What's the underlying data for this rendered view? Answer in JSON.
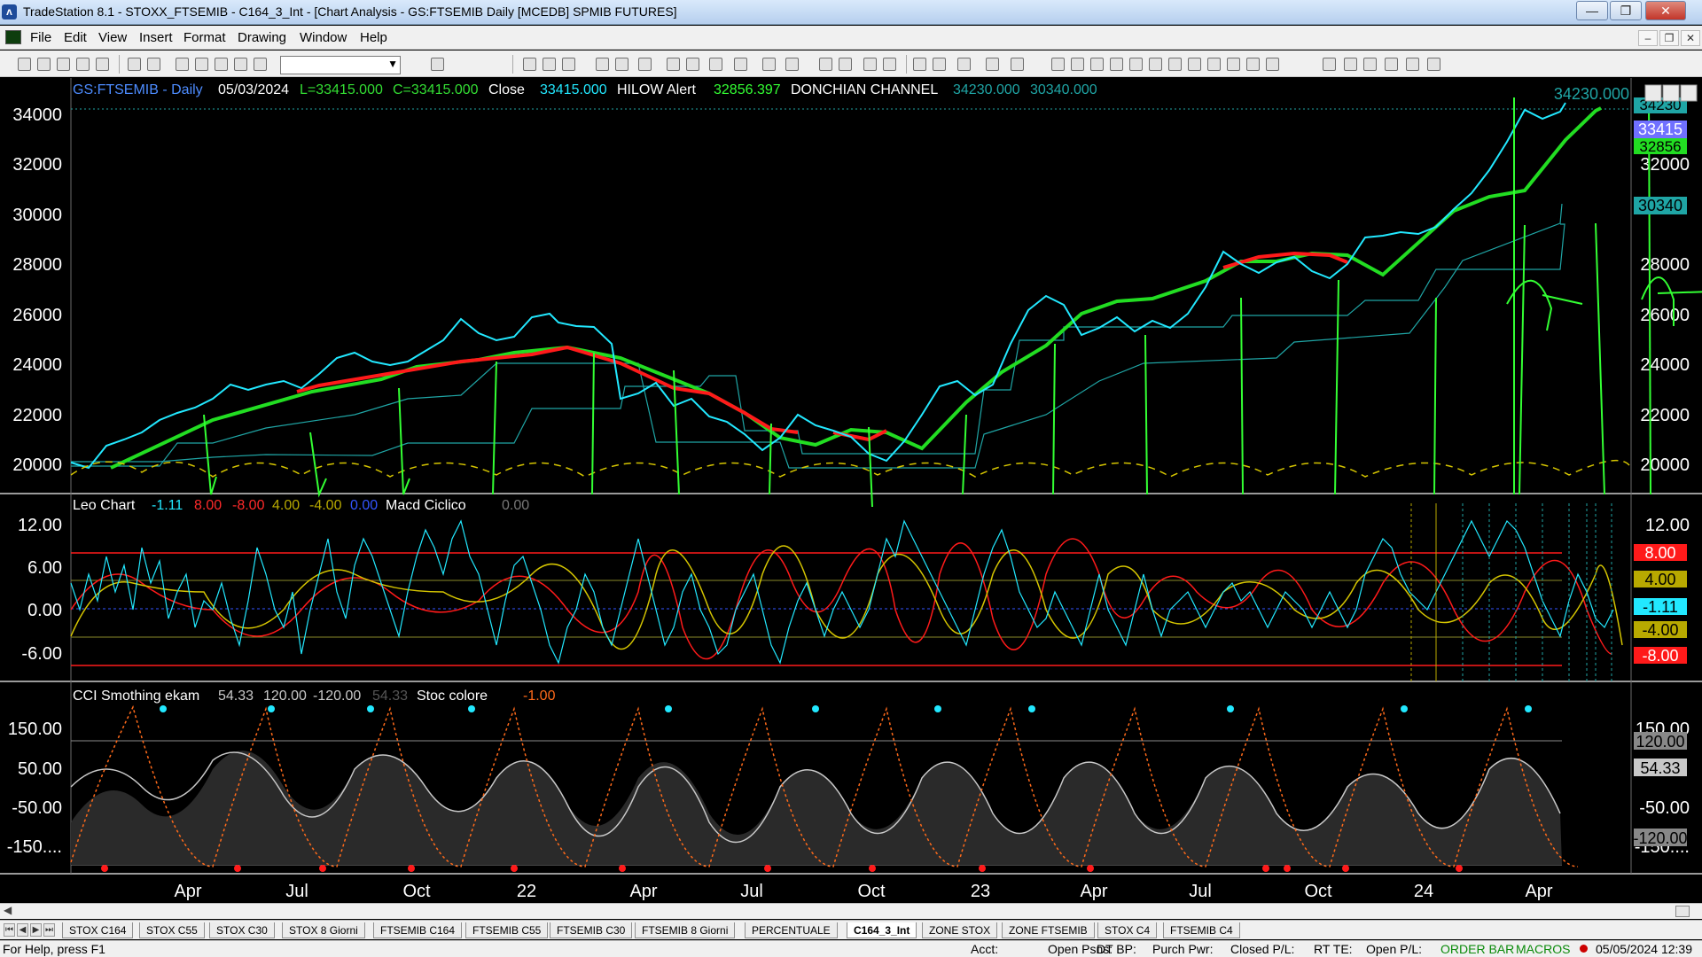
{
  "window": {
    "title": "TradeStation 8.1 - STOXX_FTSEMIB - C164_3_Int - [Chart Analysis - GS:FTSEMIB  Daily  [MCEDB] SPMIB FUTURES]",
    "minimize": "—",
    "restore": "❐",
    "close": "✕"
  },
  "menu": {
    "items": [
      "File",
      "Edit",
      "View",
      "Insert",
      "Format",
      "Drawing",
      "Window",
      "Help"
    ],
    "mdi_minimize": "–",
    "mdi_restore": "❐",
    "mdi_close": "✕"
  },
  "chart": {
    "header": {
      "symbol": "GS:FTSEMIB - Daily",
      "date": "05/03/2024",
      "low": "L=33415.000",
      "close": "C=33415.000",
      "close_label": "Close",
      "close_value": "33415.000",
      "hilow_label": "HILOW Alert",
      "hilow_value": "32856.397",
      "donchian_label": "DONCHIAN CHANNEL",
      "donchian_hi": "34230.000",
      "donchian_lo": "30340.000"
    },
    "top_right_value": "34230.000",
    "price_axis": [
      "34000",
      "32000",
      "30000",
      "28000",
      "26000",
      "24000",
      "22000",
      "20000"
    ],
    "price_tags": [
      "34230",
      "33415",
      "32856",
      "30340"
    ],
    "x_axis": [
      "Apr",
      "Jul",
      "Oct",
      "22",
      "Apr",
      "Jul",
      "Oct",
      "23",
      "Apr",
      "Jul",
      "Oct",
      "24",
      "Apr"
    ],
    "leo": {
      "title": "Leo Chart",
      "values": [
        "-1.11",
        "8.00",
        "-8.00",
        "4.00",
        "-4.00",
        "0.00"
      ],
      "macd_label": "Macd Ciclico",
      "macd_value": "0.00",
      "axis": [
        "12.00",
        "6.00",
        "0.00",
        "-6.00"
      ],
      "tags": [
        "8.00",
        "4.00",
        "-1.11",
        "-4.00",
        "-8.00"
      ]
    },
    "cci": {
      "title": "CCI Smothing ekam",
      "values": [
        "54.33",
        "120.00",
        "-120.00",
        "54.33"
      ],
      "stoc_label": "Stoc colore",
      "stoc_value": "-1.00",
      "axis": [
        "150.00",
        "50.00",
        "-50.00",
        "-150...."
      ],
      "tags": [
        "120.00",
        "54.33",
        "-120.00"
      ]
    },
    "colors": {
      "price": "#22e8ff",
      "ma_up": "#22dd22",
      "ma_down": "#ff1a1a",
      "donchian": "#1fa5a5",
      "alert": "#33ff33",
      "cycle": "#d4c400",
      "cci_line": "#c8c8c8",
      "stoc": "#ff6a1a"
    }
  },
  "tabs": [
    "STOX C164",
    "STOX C55",
    "STOX  C30",
    "STOX  8 Giorni",
    "FTSEMIB C164",
    "FTSEMIB C55",
    "FTSEMIB C30",
    "FTSEMIB  8 Giorni",
    "PERCENTUALE",
    "C164_3_Int",
    "ZONE STOX",
    "ZONE FTSEMIB",
    "STOX  C4",
    "FTSEMIB C4"
  ],
  "active_tab": "C164_3_Int",
  "status": {
    "help": "For Help, press F1",
    "acct": "Acct:",
    "open_psns": "Open Psns:",
    "dt_bp": "DT BP:",
    "purch_pwr": "Purch Pwr:",
    "closed_pl": "Closed P/L:",
    "rt_te": "RT TE:",
    "open_pl": "Open P/L:",
    "order_bar": "ORDER BAR",
    "macros": "MACROS",
    "datetime": "05/05/2024 12:39"
  },
  "icons": [
    "chart-app-icon",
    "new-icon",
    "open-icon",
    "save-icon",
    "print-icon",
    "zoom-in-icon",
    "zoom-out-icon",
    "cursor-icon",
    "trendline-icon",
    "text-tool-icon"
  ]
}
